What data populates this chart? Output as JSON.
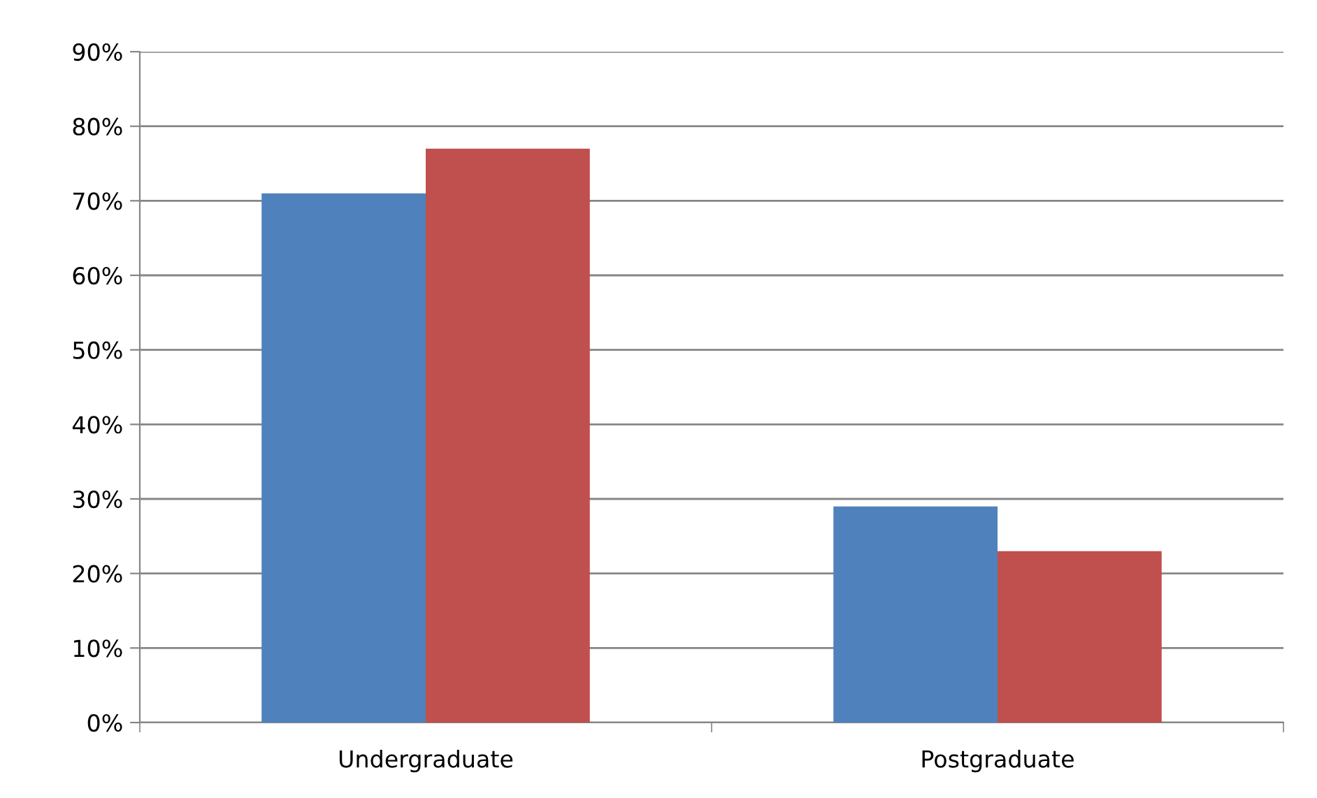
{
  "chart_data": {
    "type": "bar",
    "categories": [
      "Undergraduate",
      "Postgraduate"
    ],
    "series": [
      {
        "color": "#4f81bd",
        "values": [
          71,
          29
        ]
      },
      {
        "color": "#c0504d",
        "values": [
          77,
          23
        ]
      }
    ],
    "ylim": [
      0,
      90
    ],
    "yticks": [
      {
        "value": 0,
        "label": "0%"
      },
      {
        "value": 10,
        "label": "10%"
      },
      {
        "value": 20,
        "label": "20%"
      },
      {
        "value": 30,
        "label": "30%"
      },
      {
        "value": 40,
        "label": "40%"
      },
      {
        "value": 50,
        "label": "50%"
      },
      {
        "value": 60,
        "label": "60%"
      },
      {
        "value": 70,
        "label": "70%"
      },
      {
        "value": 80,
        "label": "80%"
      },
      {
        "value": 90,
        "label": "90%"
      }
    ],
    "grid": "y"
  }
}
